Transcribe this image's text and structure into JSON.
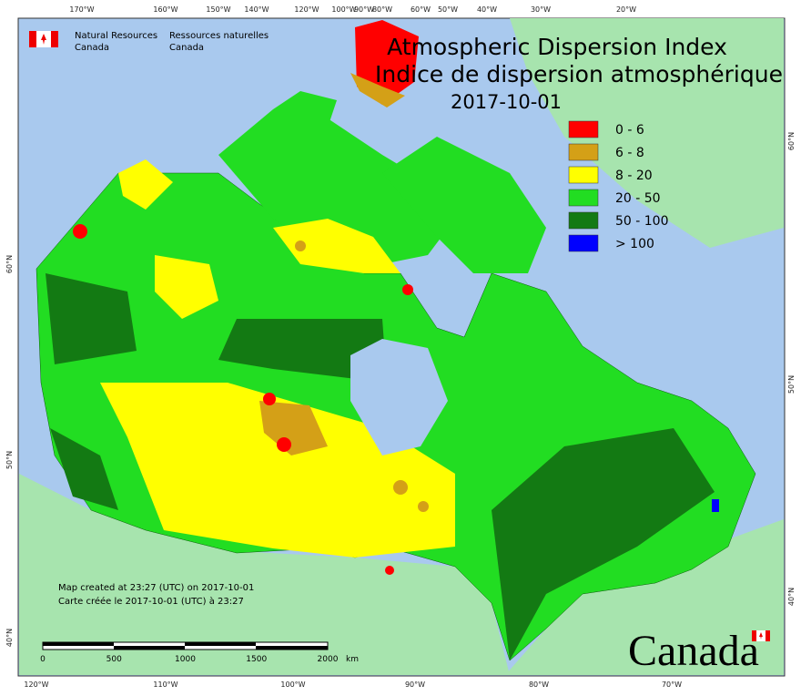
{
  "header": {
    "org_en": "Natural Resources",
    "org_en2": "Canada",
    "org_fr": "Ressources naturelles",
    "org_fr2": "Canada"
  },
  "title": {
    "en": "Atmospheric Dispersion Index",
    "fr": "Indice de dispersion atmosphérique",
    "date": "2017-10-01"
  },
  "legend": [
    {
      "label": "0 - 6",
      "color": "#ff0000"
    },
    {
      "label": "6 - 8",
      "color": "#d4a017"
    },
    {
      "label": "8 - 20",
      "color": "#ffff00"
    },
    {
      "label": "20 - 50",
      "color": "#22dd22"
    },
    {
      "label": "50 - 100",
      "color": "#137a13"
    },
    {
      "label": "> 100",
      "color": "#0000ff"
    }
  ],
  "graticule": {
    "top": [
      "170°W",
      "160°W",
      "150°W",
      "140°W",
      "120°W",
      "100°W",
      "90°W",
      "80°W",
      "60°W",
      "50°W",
      "40°W",
      "30°W",
      "20°W"
    ],
    "bottom": [
      "120°W",
      "110°W",
      "100°W",
      "90°W",
      "80°W",
      "70°W"
    ],
    "left": [
      "60°N",
      "50°N",
      "40°N"
    ],
    "right": [
      "60°N",
      "50°N",
      "40°N"
    ]
  },
  "credits": [
    "Map created at 23:27 (UTC) on 2017-10-01",
    "Carte créée le 2017-10-01 (UTC) à 23:27"
  ],
  "scale_bar": {
    "ticks": [
      "0",
      "500",
      "1000",
      "1500",
      "2000"
    ],
    "unit": "km"
  },
  "wordmark": "Canada"
}
